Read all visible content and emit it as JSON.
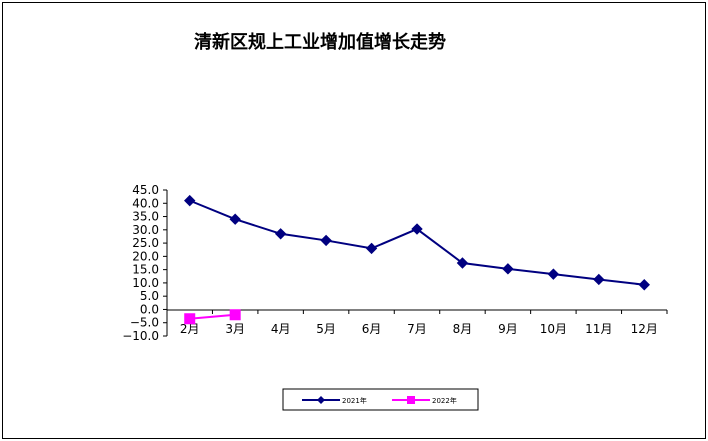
{
  "chart_data": {
    "type": "line",
    "title": "清新区规上工业增加值增长走势",
    "xlabel": "",
    "ylabel": "",
    "categories": [
      "2月",
      "3月",
      "4月",
      "5月",
      "6月",
      "7月",
      "8月",
      "9月",
      "10月",
      "11月",
      "12月"
    ],
    "ylim": [
      -10,
      45
    ],
    "yticks": [
      -10,
      -5,
      0,
      5,
      10,
      15,
      20,
      25,
      30,
      35,
      40,
      45
    ],
    "ytick_labels": [
      "−10.0",
      "−5.0",
      "0.0",
      "5.0",
      "10.0",
      "15.0",
      "20.0",
      "25.0",
      "30.0",
      "35.0",
      "40.0",
      "45.0"
    ],
    "grid": false,
    "legend_position": "bottom",
    "series": [
      {
        "name": "2021年",
        "color": "#000080",
        "marker": "diamond",
        "values": [
          41.0,
          34.0,
          28.5,
          26.0,
          23.0,
          30.3,
          17.5,
          15.3,
          13.3,
          11.3,
          9.3
        ]
      },
      {
        "name": "2022年",
        "color": "#ff00ff",
        "marker": "square",
        "values": [
          -3.5,
          -2.0,
          null,
          null,
          null,
          null,
          null,
          null,
          null,
          null,
          null
        ]
      }
    ]
  }
}
